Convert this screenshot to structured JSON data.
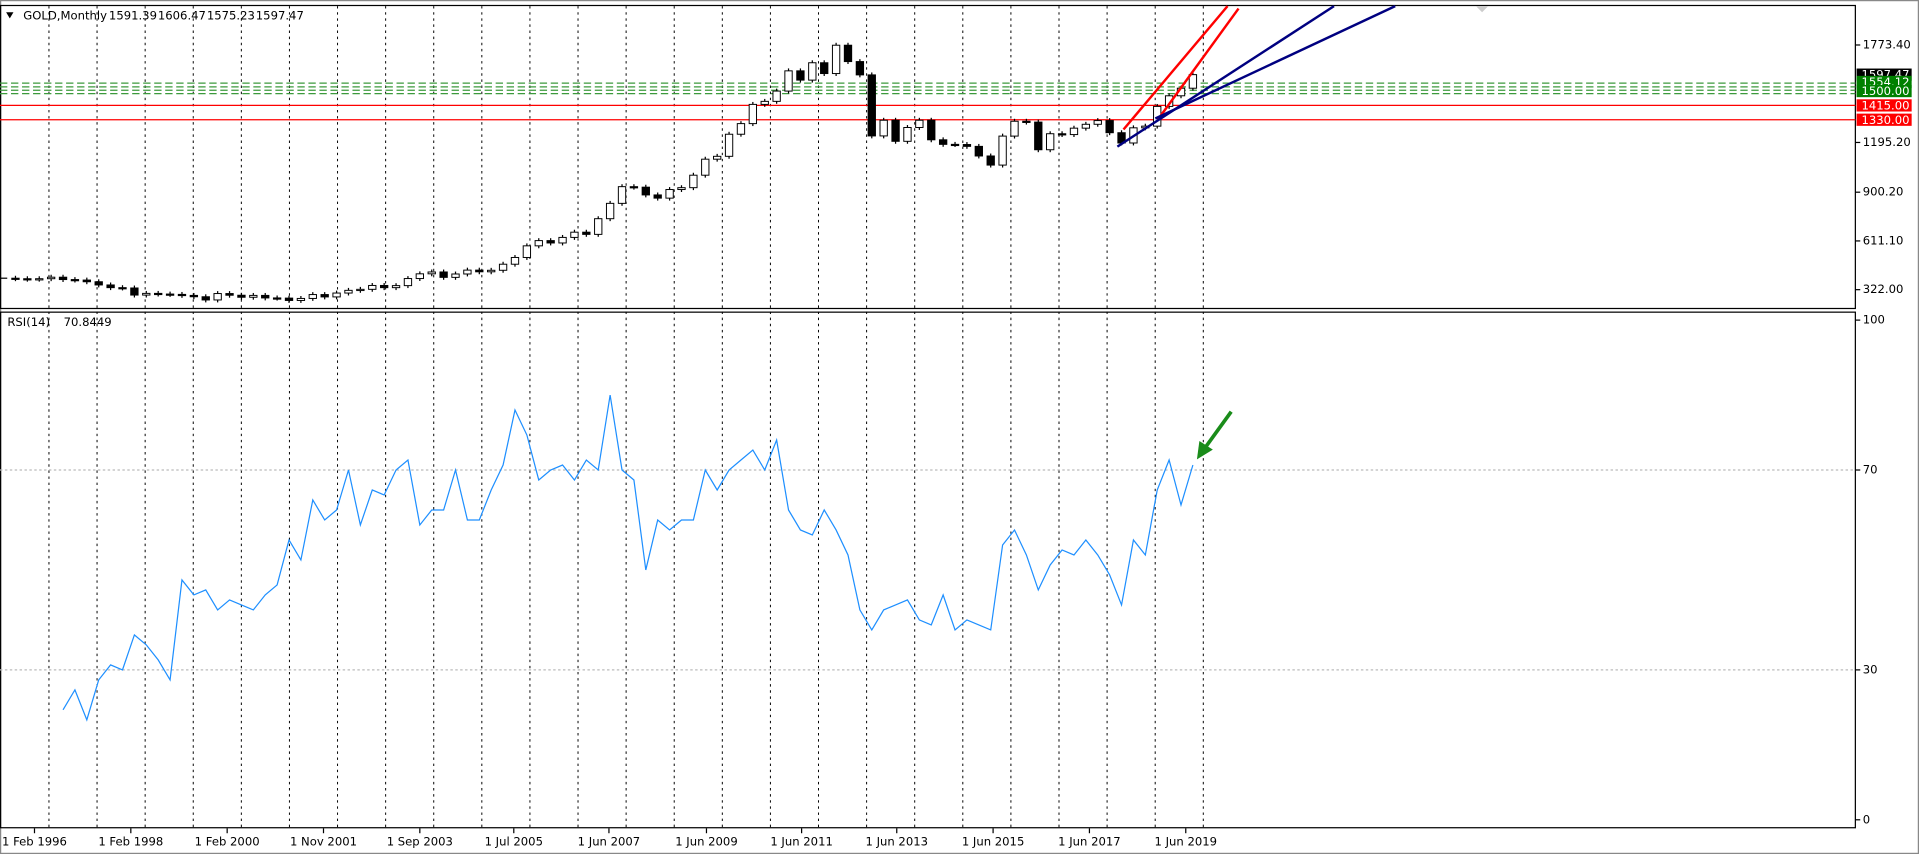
{
  "chart_data": [
    {
      "type": "candlestick",
      "title": "GOLD,Monthly",
      "header_values": [
        1591.39,
        1606.47,
        1575.23,
        1597.47
      ],
      "color": "#000000",
      "values": [
        390,
        387,
        384,
        387,
        396,
        382,
        379,
        369,
        350,
        334,
        332,
        290,
        300,
        296,
        294,
        288,
        280,
        261,
        299,
        289,
        277,
        288,
        273,
        272,
        258,
        270,
        293,
        279,
        302,
        318,
        324,
        347,
        334,
        346,
        388,
        416,
        427,
        395,
        415,
        438,
        428,
        437,
        473,
        513,
        582,
        613,
        599,
        632,
        663,
        650,
        743,
        834,
        933,
        930,
        884,
        865,
        916,
        927,
        1001,
        1096,
        1113,
        1244,
        1307,
        1421,
        1439,
        1500,
        1620,
        1565,
        1668,
        1604,
        1772,
        1675,
        1596,
        1234,
        1327,
        1202,
        1284,
        1327,
        1211,
        1184,
        1183,
        1172,
        1115,
        1061,
        1233,
        1321,
        1316,
        1152,
        1247,
        1242,
        1280,
        1303,
        1325,
        1253,
        1192,
        1282,
        1292,
        1409,
        1472,
        1517,
        1597.47
      ],
      "xlim": [
        -0.3,
        155.7
      ],
      "xticks": [
        {
          "value": 2.6,
          "label": "1 Feb 1996"
        },
        {
          "value": 10.7,
          "label": "1 Feb 1998"
        },
        {
          "value": 18.8,
          "label": "1 Feb 2000"
        },
        {
          "value": 26.9,
          "label": "1 Nov 2001"
        },
        {
          "value": 35,
          "label": "1 Sep 2003"
        },
        {
          "value": 42.9,
          "label": "1 Jul 2005"
        },
        {
          "value": 50.9,
          "label": "1 Jun 2007"
        },
        {
          "value": 59.1,
          "label": "1 Jun 2009"
        },
        {
          "value": 67.1,
          "label": "1 Jun 2011"
        },
        {
          "value": 75.1,
          "label": "1 Jun 2013"
        },
        {
          "value": 83.2,
          "label": "1 Jun 2015"
        },
        {
          "value": 91.3,
          "label": "1 Jun 2017"
        },
        {
          "value": 99.4,
          "label": "1 Jun 2019"
        }
      ],
      "ylim": [
        214,
        2004
      ],
      "yticks": [
        {
          "value": 322,
          "label": "322.00"
        },
        {
          "value": 611.1,
          "label": "611.10"
        },
        {
          "value": 900.2,
          "label": "900.20"
        },
        {
          "value": 1195.2,
          "label": "1195.20"
        },
        {
          "value": 1773.4,
          "label": "1773.40"
        }
      ],
      "hlines": [
        {
          "value": 1547,
          "color": "#3c9a3c",
          "dashed": true
        },
        {
          "value": 1525,
          "color": "#3c9a3c",
          "dashed": true
        },
        {
          "value": 1505,
          "color": "#3c9a3c",
          "dashed": true
        },
        {
          "value": 1485,
          "color": "#3c9a3c",
          "dashed": true
        },
        {
          "value": 1415,
          "color": "#ff0000",
          "dashed": false
        },
        {
          "value": 1330,
          "color": "#ff0000",
          "dashed": false
        }
      ],
      "markers": [
        {
          "value": 1597.47,
          "label": "1597.47",
          "color": "#000000"
        },
        {
          "value": 1554.12,
          "label": "1554.12",
          "color": "#008000"
        },
        {
          "value": 1500,
          "label": "1500.00",
          "color": "#008000"
        },
        {
          "value": 1415,
          "label": "1415.00",
          "color": "#ff0000"
        },
        {
          "value": 1330,
          "label": "1330.00",
          "color": "#ff0000"
        }
      ]
    },
    {
      "type": "line",
      "title": "RSI(14)",
      "last_value": 70.8449,
      "color": "#1e8fff",
      "values": [
        null,
        null,
        null,
        null,
        null,
        22,
        26,
        20,
        28,
        31,
        30,
        37,
        35,
        32,
        28,
        48,
        45,
        46,
        42,
        44,
        43,
        42,
        45,
        47,
        56,
        52,
        64,
        60,
        62,
        70,
        59,
        66,
        65,
        70,
        72,
        59,
        62,
        62,
        70,
        60,
        60,
        66,
        71,
        82,
        77,
        68,
        70,
        71,
        68,
        72,
        70,
        85,
        70,
        68,
        50,
        60,
        58,
        60,
        60,
        70,
        66,
        70,
        72,
        74,
        70,
        76,
        62,
        58,
        57,
        62,
        58,
        53,
        42,
        38,
        42,
        43,
        44,
        40,
        39,
        45,
        38,
        40,
        39,
        38,
        55,
        58,
        53,
        46,
        51,
        54,
        53,
        56,
        53,
        49,
        43,
        56,
        53,
        66,
        72,
        63,
        71
      ],
      "xlim": [
        -0.3,
        155.7
      ],
      "ylim": [
        0,
        100
      ],
      "yticks": [
        0,
        30,
        70,
        100
      ],
      "grid": true
    }
  ]
}
